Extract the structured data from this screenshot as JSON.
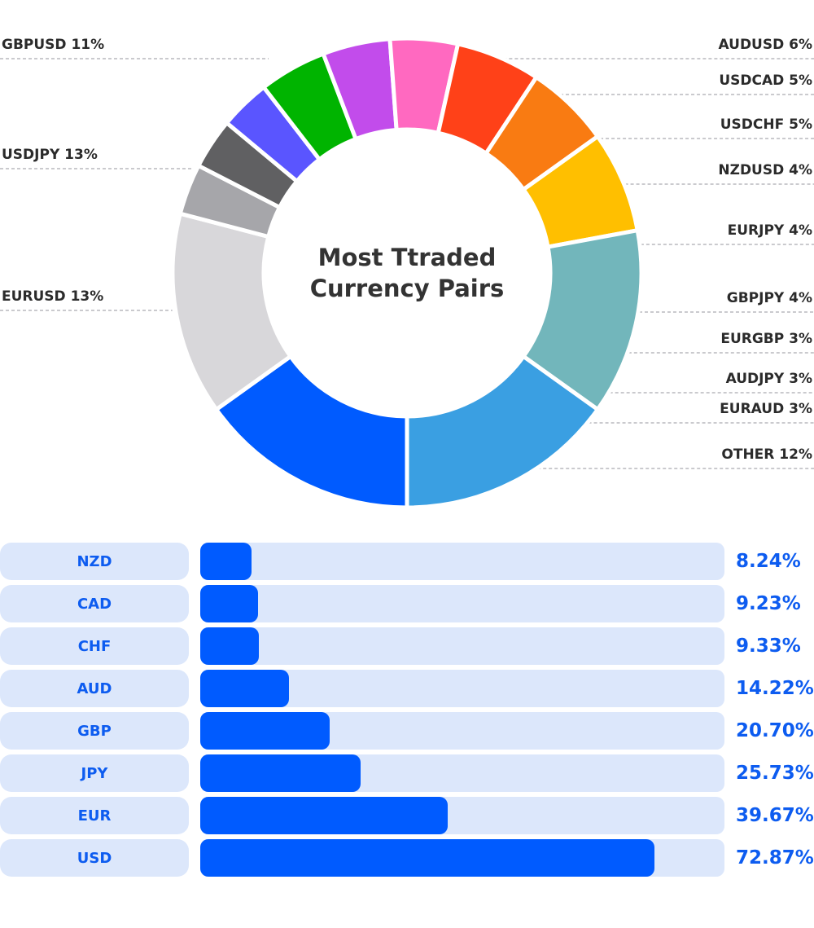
{
  "chart_data": [
    {
      "type": "pie",
      "title": "Most Ttraded Currency Pairs",
      "title_lines": [
        "Most Ttraded",
        "Currency Pairs"
      ],
      "donut": true,
      "legend": "labels-with-leader-lines",
      "slices": [
        {
          "name": "EURUSD",
          "value": 13,
          "label": "EURUSD 13%",
          "color": "#005bff"
        },
        {
          "name": "OTHER",
          "value": 12,
          "label": "OTHER 12%",
          "color": "#d8d7da"
        },
        {
          "name": "EURAUD",
          "value": 3,
          "label": "EURAUD 3%",
          "color": "#a6a6aa"
        },
        {
          "name": "AUDJPY",
          "value": 3,
          "label": "AUDJPY 3%",
          "color": "#606062"
        },
        {
          "name": "EURGBP",
          "value": 3,
          "label": "EURGBP 3%",
          "color": "#5a55ff"
        },
        {
          "name": "GBPJPY",
          "value": 4,
          "label": "GBPJPY 4%",
          "color": "#00b400"
        },
        {
          "name": "EURJPY",
          "value": 4,
          "label": "EURJPY 4%",
          "color": "#c24ceb"
        },
        {
          "name": "NZDUSD",
          "value": 4,
          "label": "NZDUSD 4%",
          "color": "#ff69c0"
        },
        {
          "name": "USDCHF",
          "value": 5,
          "label": "USDCHF 5%",
          "color": "#ff4118"
        },
        {
          "name": "USDCAD",
          "value": 5,
          "label": "USDCAD 5%",
          "color": "#f97b12"
        },
        {
          "name": "AUDUSD",
          "value": 6,
          "label": "AUDUSD 6%",
          "color": "#ffbf00"
        },
        {
          "name": "GBPUSD",
          "value": 11,
          "label": "GBPUSD 11%",
          "color": "#72b6bb"
        },
        {
          "name": "USDJPY",
          "value": 13,
          "label": "USDJPY 13%",
          "color": "#3a9fe2"
        }
      ]
    },
    {
      "type": "bar",
      "orientation": "horizontal",
      "categories": [
        "NZD",
        "CAD",
        "CHF",
        "AUD",
        "GBP",
        "JPY",
        "EUR",
        "USD"
      ],
      "values": [
        8.24,
        9.23,
        9.33,
        14.22,
        20.7,
        25.73,
        39.67,
        72.87
      ],
      "value_labels": [
        "8.24%",
        "9.23%",
        "9.33%",
        "14.22%",
        "20.70%",
        "25.73%",
        "39.67%",
        "72.87%"
      ],
      "xlim": [
        0,
        100
      ],
      "colors": {
        "bar": "#005bff",
        "track": "#dce7fb",
        "text": "#0d5cf0"
      }
    }
  ]
}
